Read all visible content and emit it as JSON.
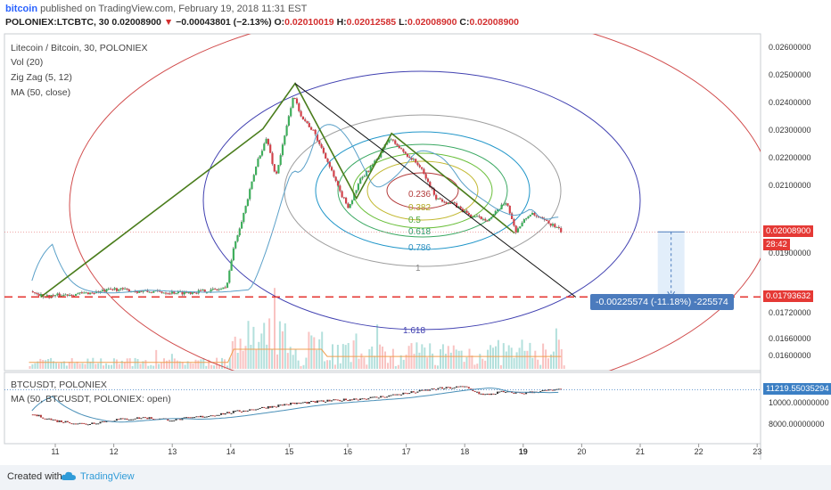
{
  "header": {
    "author": "bitcoin",
    "published": " published on TradingView.com, February 19, 2018 11:31 EST",
    "symbol": "POLONIEX:LTCBTC, 30",
    "last": "0.02008900",
    "change": "−0.00043801 (−2.13%)",
    "open_label": "O:",
    "open": "0.02010019",
    "high_label": "H:",
    "high": "0.02012585",
    "low_label": "L:",
    "low": "0.02008900",
    "close_label": "C:",
    "close": "0.02008900"
  },
  "indicators": {
    "title": "Litecoin / Bitcoin, 30, POLONIEX",
    "vol": "Vol (20)",
    "zigzag": "Zig Zag (5, 12)",
    "ma": "MA (50, close)"
  },
  "lower_pane": {
    "title": "BTCUSDT, POLONIEX",
    "ma": "MA (50, BTCUSDT, POLONIEX: open)"
  },
  "colors": {
    "up": "#26a69a",
    "down": "#ef5350",
    "zigzag": "#4a7d1c",
    "ellipse_outer": "#3f3fb0",
    "ellipse_red": "#d14b4b",
    "trend": "#111111",
    "support": "#e53935",
    "measure": "#4b7bbd"
  },
  "chart_data": [
    {
      "type": "line",
      "title": "Litecoin / Bitcoin, 30, POLONIEX",
      "x_ticks": [
        "11",
        "12",
        "13",
        "14",
        "15",
        "16",
        "17",
        "18",
        "19",
        "20",
        "21",
        "22",
        "23"
      ],
      "y_ticks": [
        "0.02600000",
        "0.02500000",
        "0.02400000",
        "0.02300000",
        "0.02200000",
        "0.02100000",
        "0.01900000",
        "0.01720000",
        "0.01660000",
        "0.01600000"
      ],
      "ylim": [
        0.0156,
        0.0263
      ],
      "price_series": [
        {
          "day": 10.6,
          "v": 0.01812
        },
        {
          "day": 10.8,
          "v": 0.01795
        },
        {
          "day": 11.2,
          "v": 0.01802
        },
        {
          "day": 11.5,
          "v": 0.01806
        },
        {
          "day": 11.8,
          "v": 0.01812
        },
        {
          "day": 12.0,
          "v": 0.0182
        },
        {
          "day": 12.4,
          "v": 0.01812
        },
        {
          "day": 12.8,
          "v": 0.0181
        },
        {
          "day": 13.2,
          "v": 0.01808
        },
        {
          "day": 13.6,
          "v": 0.01815
        },
        {
          "day": 13.9,
          "v": 0.01822
        },
        {
          "day": 14.05,
          "v": 0.0197
        },
        {
          "day": 14.25,
          "v": 0.021
        },
        {
          "day": 14.45,
          "v": 0.0225
        },
        {
          "day": 14.6,
          "v": 0.0232
        },
        {
          "day": 14.75,
          "v": 0.0219
        },
        {
          "day": 14.9,
          "v": 0.0232
        },
        {
          "day": 15.05,
          "v": 0.0246
        },
        {
          "day": 15.2,
          "v": 0.0239
        },
        {
          "day": 15.4,
          "v": 0.0234
        },
        {
          "day": 15.6,
          "v": 0.0226
        },
        {
          "day": 15.85,
          "v": 0.0214
        },
        {
          "day": 16.0,
          "v": 0.0209
        },
        {
          "day": 16.2,
          "v": 0.0218
        },
        {
          "day": 16.45,
          "v": 0.0224
        },
        {
          "day": 16.7,
          "v": 0.0232
        },
        {
          "day": 16.9,
          "v": 0.0228
        },
        {
          "day": 17.2,
          "v": 0.0223
        },
        {
          "day": 17.5,
          "v": 0.0212
        },
        {
          "day": 17.8,
          "v": 0.021
        },
        {
          "day": 18.1,
          "v": 0.0206
        },
        {
          "day": 18.4,
          "v": 0.0205
        },
        {
          "day": 18.7,
          "v": 0.0211
        },
        {
          "day": 18.85,
          "v": 0.0201
        },
        {
          "day": 19.1,
          "v": 0.0207
        },
        {
          "day": 19.3,
          "v": 0.0205
        },
        {
          "day": 19.5,
          "v": 0.0203
        },
        {
          "day": 19.65,
          "v": 0.02008
        }
      ],
      "zigzag": [
        {
          "day": 10.75,
          "v": 0.01793
        },
        {
          "day": 14.55,
          "v": 0.0235
        },
        {
          "day": 15.1,
          "v": 0.025
        },
        {
          "day": 16.15,
          "v": 0.0212
        },
        {
          "day": 16.75,
          "v": 0.02335
        },
        {
          "day": 18.85,
          "v": 0.02005
        }
      ],
      "trend_line": [
        {
          "day": 15.1,
          "v": 0.025
        },
        {
          "day": 19.9,
          "v": 0.01793
        }
      ],
      "support_level": 0.01793632,
      "fib_levels": [
        "0.236",
        "0.382",
        "0.5",
        "0.618",
        "0.786",
        "1",
        "1.618"
      ],
      "last_price_tag": "0.02008900",
      "countdown_tag": "28:42",
      "support_tag": "0.01793632",
      "measure_label": "-0.00225574 (-11.18%) -225574"
    },
    {
      "type": "line",
      "title": "BTCUSDT, POLONIEX",
      "y_ticks": [
        "10000.00000000",
        "8000.00000000"
      ],
      "ylim": [
        6500,
        12300
      ],
      "series": [
        {
          "day": 10.6,
          "v": 8900
        },
        {
          "day": 11.0,
          "v": 8300
        },
        {
          "day": 11.5,
          "v": 8000
        },
        {
          "day": 12.0,
          "v": 8400
        },
        {
          "day": 12.5,
          "v": 8600
        },
        {
          "day": 13.0,
          "v": 8400
        },
        {
          "day": 13.5,
          "v": 8700
        },
        {
          "day": 14.0,
          "v": 9100
        },
        {
          "day": 14.5,
          "v": 9500
        },
        {
          "day": 15.0,
          "v": 9900
        },
        {
          "day": 15.5,
          "v": 10100
        },
        {
          "day": 16.0,
          "v": 10300
        },
        {
          "day": 16.5,
          "v": 10500
        },
        {
          "day": 17.0,
          "v": 10900
        },
        {
          "day": 17.5,
          "v": 11300
        },
        {
          "day": 18.0,
          "v": 11500
        },
        {
          "day": 18.3,
          "v": 10700
        },
        {
          "day": 18.6,
          "v": 11000
        },
        {
          "day": 19.0,
          "v": 10900
        },
        {
          "day": 19.3,
          "v": 11100
        },
        {
          "day": 19.65,
          "v": 11219
        }
      ],
      "last_price_tag": "11219.55035294"
    }
  ]
}
